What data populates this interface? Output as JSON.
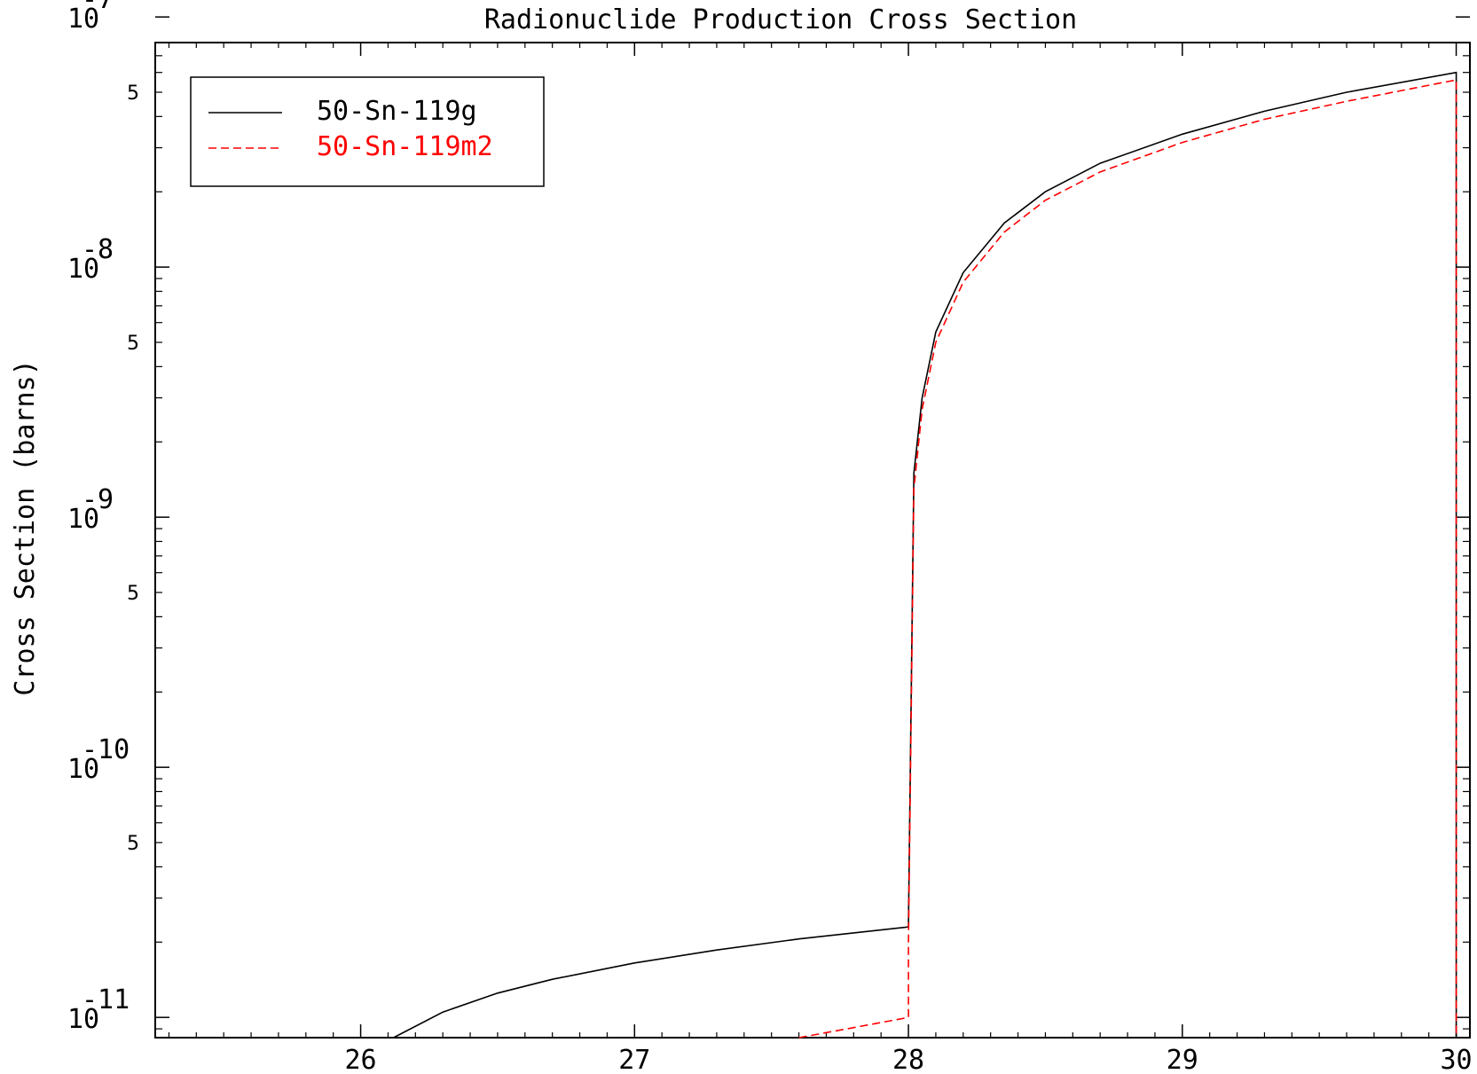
{
  "chart_data": {
    "type": "line",
    "title": "Radionuclide Production Cross Section",
    "xlabel": "",
    "ylabel": "Cross Section (barns)",
    "xlim": [
      25.25,
      30.05
    ],
    "ylim": [
      8.3e-12,
      7.9e-08
    ],
    "yscale": "log",
    "x_ticks": [
      {
        "value": 26,
        "label": "26"
      },
      {
        "value": 27,
        "label": "27"
      },
      {
        "value": 28,
        "label": "28"
      },
      {
        "value": 29,
        "label": "29"
      },
      {
        "value": 30,
        "label": "30"
      }
    ],
    "y_major_ticks": [
      {
        "value": 1e-11,
        "base": "10",
        "exp": "-11"
      },
      {
        "value": 1e-10,
        "base": "10",
        "exp": "-10"
      },
      {
        "value": 1e-09,
        "base": "10",
        "exp": "-9"
      },
      {
        "value": 1e-08,
        "base": "10",
        "exp": "-8"
      },
      {
        "value": 1e-07,
        "base": "10",
        "exp": "-7"
      }
    ],
    "y_minor_labels": [
      {
        "value": 5e-11,
        "label": "5"
      },
      {
        "value": 5e-10,
        "label": "5"
      },
      {
        "value": 5e-09,
        "label": "5"
      },
      {
        "value": 5e-08,
        "label": "5"
      }
    ],
    "grid": false,
    "legend_position": "top-left",
    "series": [
      {
        "name": "50-Sn-119g",
        "color": "#000000",
        "dash": "solid",
        "x": [
          26.12,
          26.3,
          26.5,
          26.7,
          27.0,
          27.3,
          27.6,
          28.0,
          28.0,
          28.02,
          28.05,
          28.1,
          28.2,
          28.35,
          28.5,
          28.7,
          29.0,
          29.3,
          29.6,
          30.0,
          30.0
        ],
        "y": [
          8.3e-12,
          1.05e-11,
          1.25e-11,
          1.42e-11,
          1.65e-11,
          1.86e-11,
          2.06e-11,
          2.3e-11,
          2.4e-11,
          1.5e-09,
          3e-09,
          5.5e-09,
          9.5e-09,
          1.5e-08,
          2e-08,
          2.6e-08,
          3.4e-08,
          4.2e-08,
          5e-08,
          6e-08,
          8.3e-12
        ]
      },
      {
        "name": "50-Sn-119m2",
        "color": "#ff0000",
        "dash": "dashed",
        "x": [
          27.6,
          27.8,
          28.0,
          28.0,
          28.02,
          28.05,
          28.1,
          28.2,
          28.35,
          28.5,
          28.7,
          29.0,
          29.3,
          29.6,
          30.0,
          30.0
        ],
        "y": [
          8.3e-12,
          9.1e-12,
          1e-11,
          2e-11,
          1.3e-09,
          2.7e-09,
          5e-09,
          8.7e-09,
          1.38e-08,
          1.85e-08,
          2.4e-08,
          3.15e-08,
          3.9e-08,
          4.6e-08,
          5.6e-08,
          8.3e-12
        ]
      }
    ]
  }
}
